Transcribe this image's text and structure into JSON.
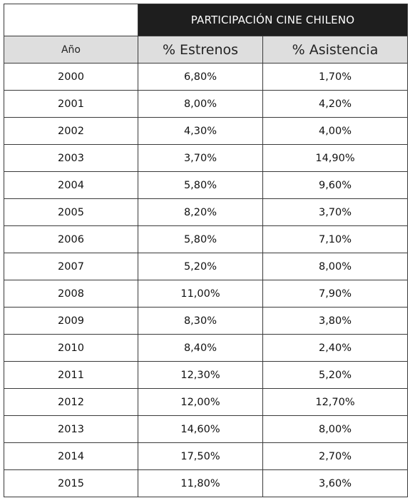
{
  "table": {
    "title": "PARTICIPACIÓN CINE CHILENO",
    "headers": [
      "Año",
      "% Estrenos",
      "% Asistencia"
    ],
    "rows": [
      [
        "2000",
        "6,80%",
        "1,70%"
      ],
      [
        "2001",
        "8,00%",
        "4,20%"
      ],
      [
        "2002",
        "4,30%",
        "4,00%"
      ],
      [
        "2003",
        "3,70%",
        "14,90%"
      ],
      [
        "2004",
        "5,80%",
        "9,60%"
      ],
      [
        "2005",
        "8,20%",
        "3,70%"
      ],
      [
        "2006",
        "5,80%",
        "7,10%"
      ],
      [
        "2007",
        "5,20%",
        "8,00%"
      ],
      [
        "2008",
        "11,00%",
        "7,90%"
      ],
      [
        "2009",
        "8,30%",
        "3,80%"
      ],
      [
        "2010",
        "8,40%",
        "2,40%"
      ],
      [
        "2011",
        "12,30%",
        "5,20%"
      ],
      [
        "2012",
        "12,00%",
        "12,70%"
      ],
      [
        "2013",
        "14,60%",
        "8,00%"
      ],
      [
        "2014",
        "17,50%",
        "2,70%"
      ],
      [
        "2015",
        "11,80%",
        "3,60%"
      ]
    ]
  },
  "colors": {
    "title_background": "#1e1e1e",
    "title_text": "#ffffff",
    "header_background": "#dedede",
    "border": "#3a3a3a"
  }
}
